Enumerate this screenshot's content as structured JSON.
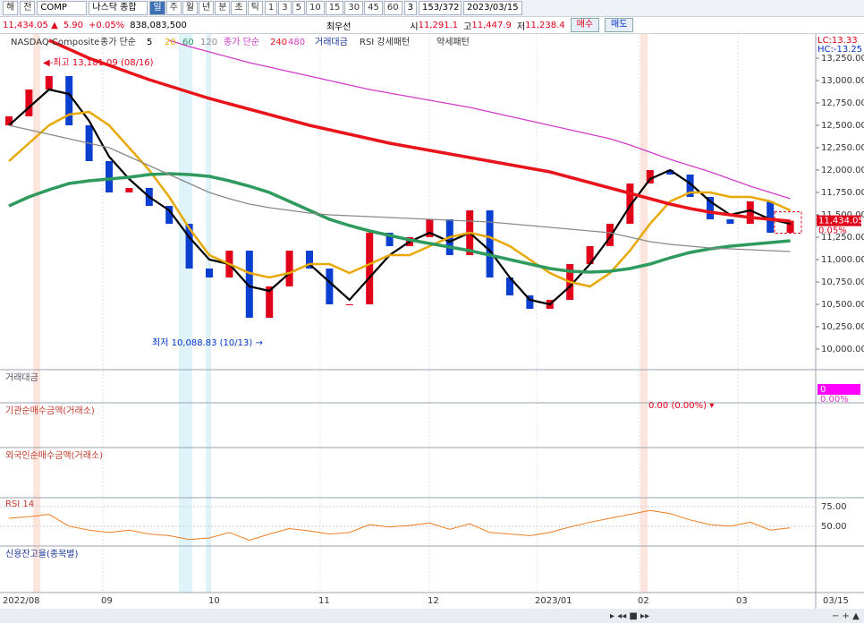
{
  "toolbar": {
    "market": "해",
    "period_kind": "전",
    "code": "COMP",
    "name": "나스닥 종합",
    "intervals": [
      "일",
      "주",
      "월",
      "년",
      "분",
      "초",
      "틱"
    ],
    "minutes": [
      "1",
      "3",
      "5",
      "10",
      "15",
      "30",
      "45",
      "60"
    ],
    "count": "3",
    "range": "153/372",
    "date": "2023/03/15"
  },
  "quote": {
    "price": "11,434.05 ▲",
    "change": "5.90",
    "change_pct": "+0.05%",
    "volume": "838,083,500",
    "best": "최우선",
    "open_label": "시",
    "open": "11,291.1",
    "high_label": "고",
    "high": "11,447.9",
    "low_label": "저",
    "low": "11,238.4",
    "buy": "매수",
    "sell": "매도"
  },
  "chart_data": [
    {
      "type": "candlestick",
      "title": "NASDAQ Composite",
      "ma_label": "종가 단순",
      "indicators": [
        "거래대금",
        "RSI 강세패턴",
        "약세패턴"
      ],
      "lc": "LC:13.33",
      "hc": "HC:-13.25",
      "up_color": "#e0001a",
      "down_color": "#0a3fd0",
      "open": [
        12500,
        12600,
        12900,
        13050,
        12500,
        12100,
        11750,
        11800,
        11600,
        11400,
        10900,
        10800,
        11100,
        10350,
        10700,
        11100,
        10900,
        10500,
        10500,
        11300,
        11150,
        11250,
        11450,
        11050,
        11550,
        10800,
        10600,
        10450,
        10550,
        10950,
        11150,
        11400,
        11850,
        12000,
        11950,
        11700,
        11450,
        11400,
        11650,
        11300
      ],
      "close": [
        12600,
        12900,
        13050,
        12500,
        12100,
        11750,
        11800,
        11600,
        11400,
        10900,
        10800,
        11100,
        10350,
        10700,
        11100,
        10900,
        10500,
        10500,
        11300,
        11150,
        11250,
        11450,
        11050,
        11550,
        10800,
        10600,
        10450,
        10550,
        10950,
        11150,
        11400,
        11850,
        12000,
        11950,
        11700,
        11450,
        11400,
        11650,
        11300,
        11434.05
      ],
      "series": [
        {
          "name": "5",
          "color": "#000000",
          "width": 2.2,
          "values": [
            12500,
            12700,
            12900,
            12850,
            12550,
            12150,
            11900,
            11700,
            11550,
            11250,
            11000,
            10950,
            10700,
            10650,
            10850,
            10950,
            10750,
            10550,
            10800,
            11050,
            11200,
            11300,
            11200,
            11300,
            11100,
            10800,
            10550,
            10500,
            10700,
            10950,
            11250,
            11600,
            11900,
            12000,
            11850,
            11650,
            11500,
            11550,
            11450,
            11400
          ]
        },
        {
          "name": "20",
          "color": "#e8a800",
          "width": 2.5,
          "values": [
            12100,
            12300,
            12500,
            12620,
            12650,
            12500,
            12250,
            12000,
            11700,
            11350,
            11050,
            10950,
            10850,
            10800,
            10850,
            10950,
            10950,
            10850,
            10950,
            11050,
            11050,
            11150,
            11250,
            11300,
            11250,
            11150,
            11000,
            10850,
            10750,
            10700,
            10850,
            11100,
            11400,
            11650,
            11750,
            11750,
            11700,
            11700,
            11650,
            11550
          ]
        },
        {
          "name": "60",
          "color": "#2e9a5e",
          "width": 3.5,
          "values": [
            11600,
            11700,
            11780,
            11850,
            11880,
            11900,
            11920,
            11950,
            11960,
            11950,
            11930,
            11880,
            11820,
            11750,
            11650,
            11550,
            11450,
            11380,
            11320,
            11270,
            11220,
            11180,
            11140,
            11100,
            11050,
            11000,
            10950,
            10900,
            10870,
            10860,
            10870,
            10900,
            10950,
            11020,
            11080,
            11120,
            11150,
            11170,
            11190,
            11210
          ]
        },
        {
          "name": "120",
          "color": "#8a8a8a",
          "width": 1.3,
          "values": [
            12500,
            12450,
            12400,
            12350,
            12300,
            12250,
            12150,
            12050,
            11950,
            11850,
            11750,
            11680,
            11620,
            11580,
            11550,
            11520,
            11500,
            11490,
            11480,
            11470,
            11460,
            11450,
            11440,
            11430,
            11420,
            11400,
            11380,
            11360,
            11340,
            11320,
            11300,
            11250,
            11200,
            11170,
            11150,
            11130,
            11120,
            11110,
            11100,
            11090
          ]
        },
        {
          "name": "240",
          "color": "#e8141a",
          "width": 3.5,
          "values": [
            null,
            null,
            13450,
            13350,
            13250,
            13170,
            13090,
            13010,
            12940,
            12870,
            12800,
            12740,
            12680,
            12620,
            12560,
            12500,
            12450,
            12400,
            12350,
            12300,
            12260,
            12220,
            12180,
            12140,
            12100,
            12060,
            12020,
            11980,
            11920,
            11860,
            11800,
            11740,
            11680,
            11620,
            11570,
            11530,
            11500,
            11470,
            11450,
            11430
          ]
        },
        {
          "name": "480",
          "color": "#d23cc8",
          "width": 1.3,
          "values": [
            null,
            null,
            null,
            null,
            null,
            null,
            null,
            null,
            13450,
            13380,
            13320,
            13260,
            13200,
            13150,
            13100,
            13050,
            13000,
            12950,
            12900,
            12860,
            12820,
            12780,
            12740,
            12700,
            12650,
            12600,
            12550,
            12500,
            12450,
            12400,
            12350,
            12280,
            12200,
            12120,
            12050,
            11980,
            11900,
            11820,
            11750,
            11680
          ]
        }
      ],
      "ylim": [
        9780,
        13500
      ],
      "yticks": [
        {
          "value": 13250,
          "label": "13,250.00"
        },
        {
          "value": 13000,
          "label": "13,000.00"
        },
        {
          "value": 12750,
          "label": "12,750.00"
        },
        {
          "value": 12500,
          "label": "12,500.00"
        },
        {
          "value": 12250,
          "label": "12,250.00"
        },
        {
          "value": 12000,
          "label": "12,000.00"
        },
        {
          "value": 11750,
          "label": "11,750.00"
        },
        {
          "value": 11500,
          "label": "11,500.00"
        },
        {
          "value": 11250,
          "label": "11,250.00"
        },
        {
          "value": 11000,
          "label": "11,000.00"
        },
        {
          "value": 10750,
          "label": "10,750.00"
        },
        {
          "value": 10500,
          "label": "10,500.00"
        },
        {
          "value": 10250,
          "label": "10,250.00"
        },
        {
          "value": 10000,
          "label": "10,000.00"
        }
      ],
      "high_note": {
        "value": 13181.09,
        "label": "◀-최고 13,181.09 (08/16)"
      },
      "low_note": {
        "value": 10088.83,
        "label": "최저 10,088.83 (10/13) →"
      },
      "price_tag": {
        "value": 11434.05,
        "label": "11,434.05"
      },
      "change_tag": "0.05%",
      "x_labels": [
        "2022/08",
        "09",
        "10",
        "11",
        "12",
        "2023/01",
        "02",
        "03"
      ],
      "x_end": "03/15"
    },
    {
      "type": "line",
      "title": "RSI 14",
      "color": "#f07d1e",
      "values": [
        60,
        62,
        65,
        50,
        45,
        42,
        45,
        40,
        38,
        33,
        35,
        42,
        32,
        40,
        47,
        44,
        40,
        42,
        52,
        49,
        51,
        54,
        46,
        53,
        42,
        40,
        38,
        42,
        49,
        55,
        60,
        65,
        70,
        66,
        58,
        52,
        50,
        55,
        45,
        48
      ],
      "ylim": [
        27,
        84
      ],
      "yticks": [
        {
          "value": 75,
          "label": "75.00"
        },
        {
          "value": 50,
          "label": "50.00"
        }
      ]
    }
  ],
  "panels": [
    {
      "title": "거래대금",
      "value": "0",
      "pct": "0.00%"
    },
    {
      "title": "기관순매수금액(거래소)",
      "note": "0.00 (0.00%) ▾"
    },
    {
      "title": "외국인순매수금액(거래소)"
    },
    {
      "title": "신용잔고율(종목별)"
    }
  ]
}
